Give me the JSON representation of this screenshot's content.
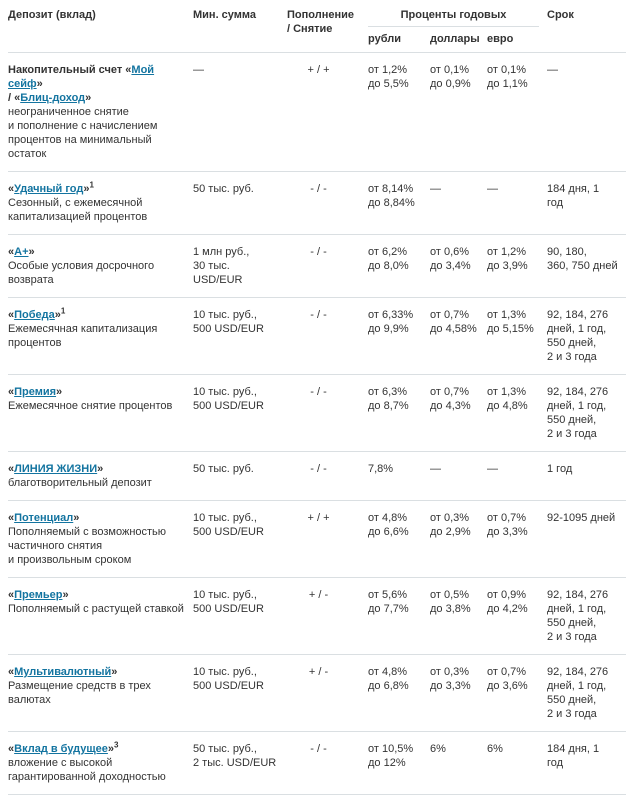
{
  "colors": {
    "link": "#1374a0",
    "text": "#333333",
    "border": "#dadfe2"
  },
  "header": {
    "deposit": "Депозит (вклад)",
    "min_sum": "Мин. сумма",
    "refill_withdraw": "Пополнение\n/ Снятие",
    "interest_group": "Проценты годовых",
    "currency_rub": "рубли",
    "currency_usd": "доллары",
    "currency_eur": "евро",
    "term": "Срок"
  },
  "rows": [
    {
      "title_parts": [
        {
          "t": "Накопительный счет «"
        },
        {
          "t": "Мой сейф",
          "link": true
        },
        {
          "t": "»\n/ «"
        },
        {
          "t": "Блиц-доход",
          "link": true
        },
        {
          "t": "»"
        }
      ],
      "description": "неограниченное снятие\nи пополнение с начислением\nпроцентов на минимальный\nостаток",
      "min_sum": "—",
      "refill": "+ / +",
      "rub": "от 1,2%\nдо 5,5%",
      "usd": "от 0,1%\nдо 0,9%",
      "eur": "от 0,1%\nдо 1,1%",
      "term": "—"
    },
    {
      "title_parts": [
        {
          "t": "«"
        },
        {
          "t": "Удачный год",
          "link": true
        },
        {
          "t": "»"
        },
        {
          "t": "1",
          "sup": true
        }
      ],
      "description": "Сезонный, с ежемесячной\nкапитализацией процентов",
      "min_sum": "50 тыс. руб.",
      "refill": "- / -",
      "rub": "от 8,14%\nдо 8,84%",
      "usd": "—",
      "eur": "—",
      "term": "184 дня, 1 год"
    },
    {
      "title_parts": [
        {
          "t": "«"
        },
        {
          "t": "А+",
          "link": true
        },
        {
          "t": "»"
        }
      ],
      "description": "Особые условия досрочного\nвозврата",
      "min_sum": "1 млн руб.,\n30 тыс. USD/EUR",
      "refill": "- / -",
      "rub": "от 6,2%\nдо 8,0%",
      "usd": "от 0,6%\nдо 3,4%",
      "eur": "от 1,2%\nдо 3,9%",
      "term": "90, 180,\n360, 750 дней"
    },
    {
      "title_parts": [
        {
          "t": "«"
        },
        {
          "t": "Победа",
          "link": true
        },
        {
          "t": "»"
        },
        {
          "t": "1",
          "sup": true
        }
      ],
      "description": "Ежемесячная капитализация\nпроцентов",
      "min_sum": "10 тыс. руб.,\n500 USD/EUR",
      "refill": "- / -",
      "rub": "от 6,33%\nдо 9,9%",
      "usd": "от 0,7%\nдо 4,58%",
      "eur": "от 1,3%\nдо 5,15%",
      "term": "92, 184, 276\nдней, 1 год,\n550 дней,\n2 и 3 года"
    },
    {
      "title_parts": [
        {
          "t": "«"
        },
        {
          "t": "Премия",
          "link": true
        },
        {
          "t": "»"
        }
      ],
      "description": "Ежемесячное снятие процентов",
      "min_sum": "10 тыс. руб.,\n500 USD/EUR",
      "refill": "- / -",
      "rub": "от 6,3%\nдо 8,7%",
      "usd": "от 0,7%\nдо 4,3%",
      "eur": "от 1,3%\nдо 4,8%",
      "term": "92, 184, 276\nдней, 1 год,\n550 дней,\n2 и 3 года"
    },
    {
      "title_parts": [
        {
          "t": "«"
        },
        {
          "t": "ЛИНИЯ ЖИЗНИ",
          "link": true
        },
        {
          "t": "»"
        }
      ],
      "description": "благотворительный депозит",
      "min_sum": "50 тыс. руб.",
      "refill": "- / -",
      "rub": "7,8%",
      "usd": "—",
      "eur": "—",
      "term": "1 год"
    },
    {
      "title_parts": [
        {
          "t": "«"
        },
        {
          "t": "Потенциал",
          "link": true
        },
        {
          "t": "»"
        }
      ],
      "description": "Пополняемый с возможностью\nчастичного снятия\nи произвольным сроком",
      "min_sum": "10 тыс. руб.,\n500 USD/EUR",
      "refill": "+ / +",
      "rub": "от 4,8%\nдо 6,6%",
      "usd": "от 0,3%\nдо 2,9%",
      "eur": "от 0,7%\nдо 3,3%",
      "term": "92-1095 дней"
    },
    {
      "title_parts": [
        {
          "t": "«"
        },
        {
          "t": "Премьер",
          "link": true
        },
        {
          "t": "»"
        }
      ],
      "description": "Пополняемый с растущей ставкой",
      "min_sum": "10 тыс. руб.,\n500 USD/EUR",
      "refill": "+ / -",
      "rub": "от 5,6%\nдо 7,7%",
      "usd": "от 0,5%\nдо 3,8%",
      "eur": "от 0,9%\nдо 4,2%",
      "term": "92, 184, 276\nдней, 1 год,\n550 дней,\n2 и 3 года"
    },
    {
      "title_parts": [
        {
          "t": "«"
        },
        {
          "t": "Мультивалютный",
          "link": true
        },
        {
          "t": "»"
        }
      ],
      "description": "Размещение средств в трех\nвалютах",
      "min_sum": "10 тыс. руб.,\n500 USD/EUR",
      "refill": "+ / -",
      "rub": "от 4,8%\nдо 6,8%",
      "usd": "от 0,3%\nдо 3,3%",
      "eur": "от 0,7%\nдо 3,6%",
      "term": "92, 184, 276\nдней, 1 год,\n550 дней,\n2 и 3 года"
    },
    {
      "title_parts": [
        {
          "t": "«"
        },
        {
          "t": "Вклад в будущее",
          "link": true
        },
        {
          "t": "»"
        },
        {
          "t": "3",
          "sup": true
        }
      ],
      "description": "вложение с высокой\nгарантированной доходностью",
      "min_sum": "50 тыс. руб.,\n2 тыс. USD/EUR",
      "refill": "- / -",
      "rub": "от 10,5%\nдо 12%",
      "usd": "6%",
      "eur": "6%",
      "term": "184 дня, 1 год"
    }
  ]
}
